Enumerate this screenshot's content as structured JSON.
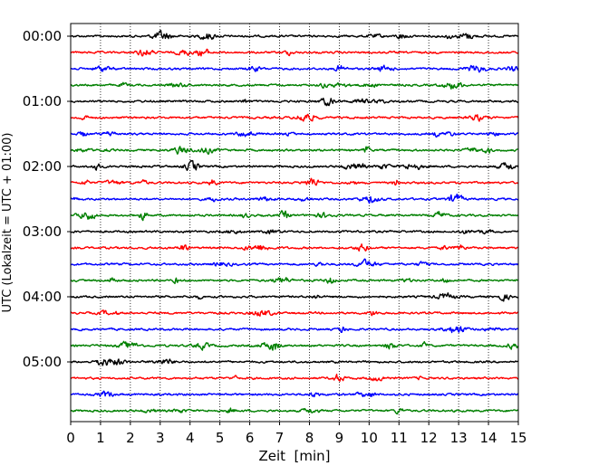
{
  "chart_data": {
    "type": "line",
    "title": "",
    "xlabel": "Zeit  [min]",
    "ylabel": "UTC (Lokalzeit = UTC + 01:00)",
    "xlim": [
      0,
      15
    ],
    "x_ticks": [
      0,
      1,
      2,
      3,
      4,
      5,
      6,
      7,
      8,
      9,
      10,
      11,
      12,
      13,
      14,
      15
    ],
    "y_tick_labels": [
      "00:00",
      "01:00",
      "02:00",
      "03:00",
      "04:00",
      "05:00"
    ],
    "rows_per_hour": 4,
    "row_minutes": 15,
    "row_count": 24,
    "series_colors": [
      "#000000",
      "#ff0000",
      "#0000ff",
      "#008000"
    ],
    "grid": "vertical dotted at each minute",
    "legend": "none"
  }
}
